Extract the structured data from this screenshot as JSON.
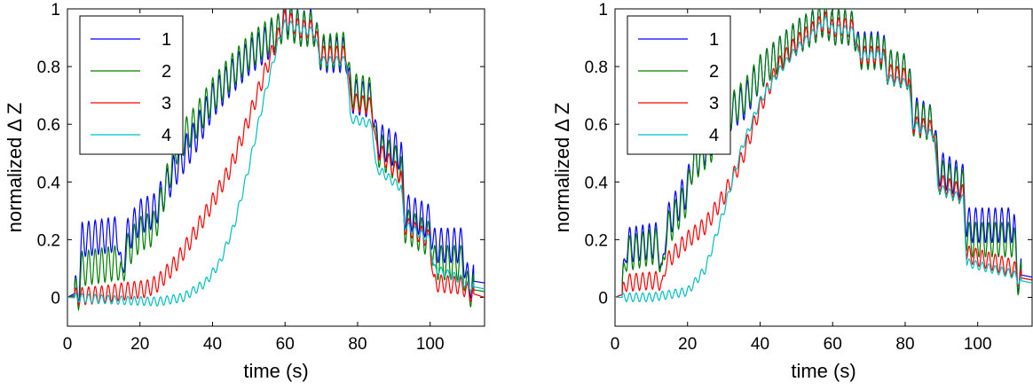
{
  "chart_data": [
    {
      "type": "line",
      "xlabel": "time (s)",
      "ylabel": "normalized Δ Z",
      "xlim": [
        0,
        115
      ],
      "ylim": [
        -0.1,
        1.0
      ],
      "xticks": [
        "0",
        "20",
        "40",
        "60",
        "80",
        "100"
      ],
      "yticks": [
        "0",
        "0.2",
        "0.4",
        "0.6",
        "0.8",
        "1"
      ],
      "grid": false,
      "legend_position": "top-left",
      "series": [
        {
          "name": "1",
          "color": "#0000ff",
          "points": [
            [
              0,
              0
            ],
            [
              3,
              0.02
            ],
            [
              4,
              0.2
            ],
            [
              14,
              0.22
            ],
            [
              15,
              0.05
            ],
            [
              16,
              0.2
            ],
            [
              20,
              0.28
            ],
            [
              24,
              0.3
            ],
            [
              30,
              0.45
            ],
            [
              35,
              0.55
            ],
            [
              40,
              0.68
            ],
            [
              45,
              0.76
            ],
            [
              50,
              0.83
            ],
            [
              55,
              0.88
            ],
            [
              58,
              0.92
            ],
            [
              60,
              0.98
            ],
            [
              64,
              0.93
            ],
            [
              68,
              0.94
            ],
            [
              69,
              0.88
            ],
            [
              70,
              0.84
            ],
            [
              77,
              0.84
            ],
            [
              78,
              0.7
            ],
            [
              84,
              0.68
            ],
            [
              85,
              0.55
            ],
            [
              92,
              0.5
            ],
            [
              93,
              0.3
            ],
            [
              100,
              0.26
            ],
            [
              101,
              0.18
            ],
            [
              109,
              0.18
            ],
            [
              110,
              0.06
            ],
            [
              115,
              0.05
            ]
          ],
          "osc_amp": 0.06
        },
        {
          "name": "2",
          "color": "#008000",
          "points": [
            [
              0,
              0
            ],
            [
              3,
              0.01
            ],
            [
              4,
              0.1
            ],
            [
              14,
              0.12
            ],
            [
              15,
              0.05
            ],
            [
              16,
              0.15
            ],
            [
              20,
              0.22
            ],
            [
              24,
              0.24
            ],
            [
              30,
              0.52
            ],
            [
              35,
              0.6
            ],
            [
              40,
              0.7
            ],
            [
              45,
              0.78
            ],
            [
              50,
              0.85
            ],
            [
              55,
              0.9
            ],
            [
              58,
              0.92
            ],
            [
              60,
              0.96
            ],
            [
              64,
              0.93
            ],
            [
              68,
              0.93
            ],
            [
              69,
              0.88
            ],
            [
              70,
              0.85
            ],
            [
              77,
              0.86
            ],
            [
              78,
              0.72
            ],
            [
              84,
              0.7
            ],
            [
              85,
              0.52
            ],
            [
              92,
              0.45
            ],
            [
              93,
              0.25
            ],
            [
              100,
              0.2
            ],
            [
              101,
              0.12
            ],
            [
              109,
              0.12
            ],
            [
              110,
              0.03
            ],
            [
              115,
              0.02
            ]
          ],
          "osc_amp": 0.06
        },
        {
          "name": "3",
          "color": "#ff0000",
          "points": [
            [
              0,
              0
            ],
            [
              10,
              0.01
            ],
            [
              15,
              0.02
            ],
            [
              22,
              0.03
            ],
            [
              25,
              0.05
            ],
            [
              30,
              0.12
            ],
            [
              35,
              0.22
            ],
            [
              40,
              0.33
            ],
            [
              45,
              0.45
            ],
            [
              50,
              0.62
            ],
            [
              55,
              0.8
            ],
            [
              58,
              0.9
            ],
            [
              60,
              0.97
            ],
            [
              64,
              0.93
            ],
            [
              68,
              0.93
            ],
            [
              69,
              0.88
            ],
            [
              70,
              0.84
            ],
            [
              77,
              0.84
            ],
            [
              78,
              0.68
            ],
            [
              84,
              0.66
            ],
            [
              85,
              0.52
            ],
            [
              92,
              0.42
            ],
            [
              93,
              0.25
            ],
            [
              100,
              0.2
            ],
            [
              101,
              0.05
            ],
            [
              109,
              0.04
            ],
            [
              110,
              0.02
            ],
            [
              115,
              0.0
            ]
          ],
          "osc_amp": 0.03
        },
        {
          "name": "4",
          "color": "#00bfbf",
          "points": [
            [
              0,
              0
            ],
            [
              15,
              -0.01
            ],
            [
              25,
              -0.015
            ],
            [
              32,
              0.0
            ],
            [
              38,
              0.05
            ],
            [
              42,
              0.12
            ],
            [
              46,
              0.25
            ],
            [
              50,
              0.45
            ],
            [
              54,
              0.68
            ],
            [
              58,
              0.88
            ],
            [
              60,
              0.95
            ],
            [
              64,
              0.93
            ],
            [
              68,
              0.92
            ],
            [
              69,
              0.86
            ],
            [
              70,
              0.82
            ],
            [
              77,
              0.82
            ],
            [
              78,
              0.62
            ],
            [
              84,
              0.6
            ],
            [
              85,
              0.45
            ],
            [
              92,
              0.38
            ],
            [
              93,
              0.25
            ],
            [
              100,
              0.2
            ],
            [
              101,
              0.1
            ],
            [
              109,
              0.06
            ],
            [
              110,
              0.04
            ],
            [
              115,
              0.03
            ]
          ],
          "osc_amp": 0.015
        }
      ]
    },
    {
      "type": "line",
      "xlabel": "time (s)",
      "ylabel": "normalized Δ Z",
      "xlim": [
        0,
        115
      ],
      "ylim": [
        -0.1,
        1.0
      ],
      "xticks": [
        "0",
        "20",
        "40",
        "60",
        "80",
        "100"
      ],
      "yticks": [
        "0",
        "0.2",
        "0.4",
        "0.6",
        "0.8",
        "1"
      ],
      "grid": false,
      "legend_position": "top-left",
      "series": [
        {
          "name": "1",
          "color": "#0000ff",
          "points": [
            [
              0,
              0
            ],
            [
              2,
              0.01
            ],
            [
              3,
              0.18
            ],
            [
              12,
              0.2
            ],
            [
              13,
              0.05
            ],
            [
              14,
              0.25
            ],
            [
              20,
              0.38
            ],
            [
              21,
              0.45
            ],
            [
              28,
              0.58
            ],
            [
              30,
              0.62
            ],
            [
              36,
              0.68
            ],
            [
              40,
              0.78
            ],
            [
              45,
              0.84
            ],
            [
              50,
              0.9
            ],
            [
              55,
              0.94
            ],
            [
              58,
              0.97
            ],
            [
              60,
              0.93
            ],
            [
              62,
              0.94
            ],
            [
              66,
              0.93
            ],
            [
              67,
              0.86
            ],
            [
              74,
              0.86
            ],
            [
              75,
              0.8
            ],
            [
              81,
              0.78
            ],
            [
              82,
              0.64
            ],
            [
              88,
              0.6
            ],
            [
              89,
              0.45
            ],
            [
              96,
              0.4
            ],
            [
              97,
              0.25
            ],
            [
              110,
              0.25
            ],
            [
              111,
              0.08
            ],
            [
              115,
              0.07
            ]
          ],
          "osc_amp": 0.06
        },
        {
          "name": "2",
          "color": "#008000",
          "points": [
            [
              0,
              0
            ],
            [
              2,
              0.01
            ],
            [
              3,
              0.15
            ],
            [
              12,
              0.18
            ],
            [
              13,
              0.05
            ],
            [
              14,
              0.22
            ],
            [
              20,
              0.35
            ],
            [
              21,
              0.45
            ],
            [
              28,
              0.55
            ],
            [
              30,
              0.62
            ],
            [
              36,
              0.7
            ],
            [
              40,
              0.78
            ],
            [
              45,
              0.84
            ],
            [
              50,
              0.9
            ],
            [
              55,
              0.94
            ],
            [
              58,
              0.97
            ],
            [
              60,
              0.93
            ],
            [
              62,
              0.94
            ],
            [
              66,
              0.93
            ],
            [
              67,
              0.85
            ],
            [
              74,
              0.85
            ],
            [
              75,
              0.8
            ],
            [
              81,
              0.78
            ],
            [
              82,
              0.62
            ],
            [
              88,
              0.6
            ],
            [
              89,
              0.42
            ],
            [
              96,
              0.38
            ],
            [
              97,
              0.2
            ],
            [
              110,
              0.2
            ],
            [
              111,
              0.07
            ],
            [
              115,
              0.06
            ]
          ],
          "osc_amp": 0.06
        },
        {
          "name": "3",
          "color": "#ff0000",
          "points": [
            [
              0,
              0
            ],
            [
              2,
              0.01
            ],
            [
              3,
              0.05
            ],
            [
              12,
              0.06
            ],
            [
              13,
              0.03
            ],
            [
              14,
              0.12
            ],
            [
              20,
              0.2
            ],
            [
              25,
              0.25
            ],
            [
              30,
              0.35
            ],
            [
              35,
              0.48
            ],
            [
              40,
              0.66
            ],
            [
              45,
              0.8
            ],
            [
              50,
              0.88
            ],
            [
              55,
              0.93
            ],
            [
              58,
              0.96
            ],
            [
              60,
              0.93
            ],
            [
              62,
              0.94
            ],
            [
              66,
              0.93
            ],
            [
              67,
              0.84
            ],
            [
              74,
              0.84
            ],
            [
              75,
              0.78
            ],
            [
              81,
              0.76
            ],
            [
              82,
              0.6
            ],
            [
              88,
              0.58
            ],
            [
              89,
              0.4
            ],
            [
              96,
              0.36
            ],
            [
              97,
              0.15
            ],
            [
              110,
              0.1
            ],
            [
              111,
              0.07
            ],
            [
              115,
              0.06
            ]
          ],
          "osc_amp": 0.03
        },
        {
          "name": "4",
          "color": "#00bfbf",
          "points": [
            [
              0,
              0
            ],
            [
              10,
              0.0
            ],
            [
              15,
              0.01
            ],
            [
              20,
              0.02
            ],
            [
              25,
              0.1
            ],
            [
              30,
              0.3
            ],
            [
              35,
              0.52
            ],
            [
              40,
              0.68
            ],
            [
              45,
              0.78
            ],
            [
              50,
              0.86
            ],
            [
              55,
              0.92
            ],
            [
              58,
              0.96
            ],
            [
              60,
              0.93
            ],
            [
              62,
              0.93
            ],
            [
              66,
              0.92
            ],
            [
              67,
              0.84
            ],
            [
              74,
              0.84
            ],
            [
              75,
              0.76
            ],
            [
              81,
              0.74
            ],
            [
              82,
              0.6
            ],
            [
              88,
              0.56
            ],
            [
              89,
              0.38
            ],
            [
              96,
              0.34
            ],
            [
              97,
              0.12
            ],
            [
              110,
              0.08
            ],
            [
              111,
              0.06
            ],
            [
              115,
              0.05
            ]
          ],
          "osc_amp": 0.015
        }
      ]
    }
  ]
}
